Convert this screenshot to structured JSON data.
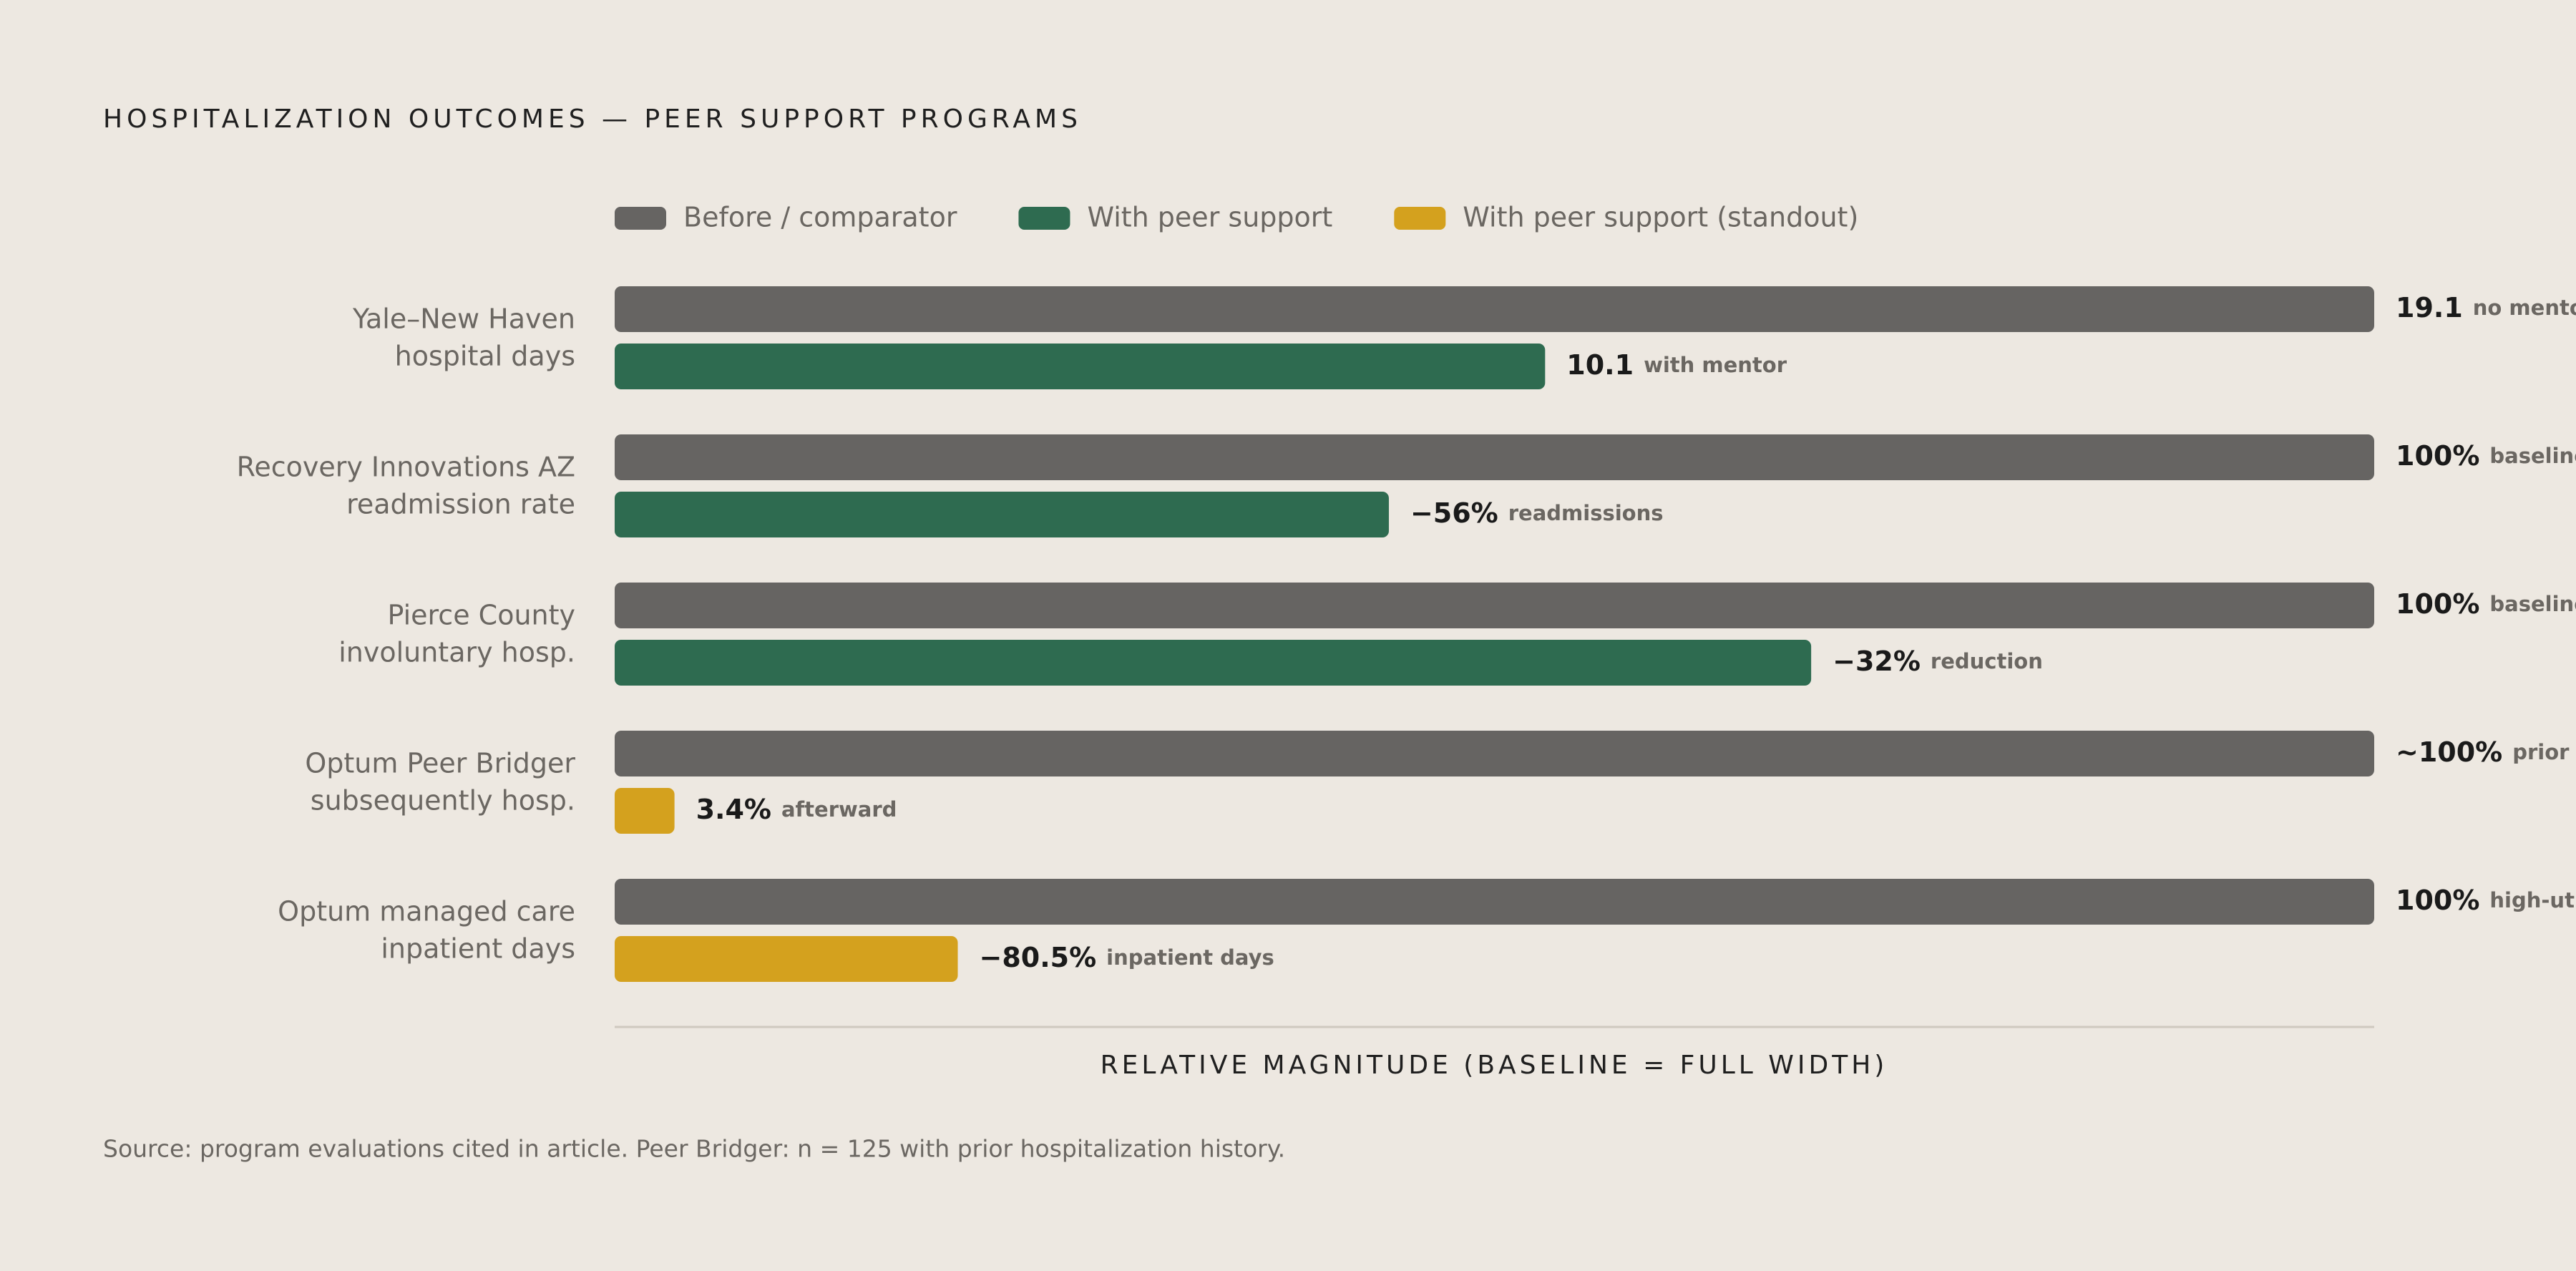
{
  "chart_data": {
    "type": "bar",
    "orientation": "horizontal",
    "title": "HOSPITALIZATION OUTCOMES — PEER SUPPORT PROGRAMS",
    "x_label": "RELATIVE MAGNITUDE (BASELINE = FULL WIDTH)",
    "source": "Source: program evaluations cited in article. Peer Bridger: n = 125 with prior hospitalization history.",
    "categories": [
      [
        "Yale–New Haven",
        "hospital days"
      ],
      [
        "Recovery Innovations AZ",
        "readmission rate"
      ],
      [
        "Pierce County",
        "involuntary hosp."
      ],
      [
        "Optum Peer Bridger",
        "subsequently hosp."
      ],
      [
        "Optum managed care",
        "inpatient days"
      ]
    ],
    "series": [
      {
        "name": "Before / comparator",
        "color": "#666462",
        "values": [
          19.1,
          100,
          100,
          100,
          100
        ],
        "value_labels": [
          "19.1",
          "100%",
          "100%",
          "~100%",
          "100%"
        ],
        "notes": [
          "no mentor",
          "baseline",
          "baseline",
          "prior hospitalization",
          "high-utilizers"
        ]
      },
      {
        "name": "With peer support",
        "color": "#2e6b50",
        "values": [
          10.1,
          -56,
          -32,
          null,
          null
        ],
        "value_labels": [
          "10.1",
          "−56%",
          "−32%",
          null,
          null
        ],
        "notes": [
          "with mentor",
          "readmissions",
          "reduction",
          null,
          null
        ]
      },
      {
        "name": "With peer support (standout)",
        "color": "#d4a11e",
        "values": [
          null,
          null,
          null,
          3.4,
          -80.5
        ],
        "value_labels": [
          null,
          null,
          null,
          "3.4%",
          "−80.5%"
        ],
        "notes": [
          null,
          null,
          null,
          "afterward",
          "inpatient days"
        ]
      }
    ]
  }
}
